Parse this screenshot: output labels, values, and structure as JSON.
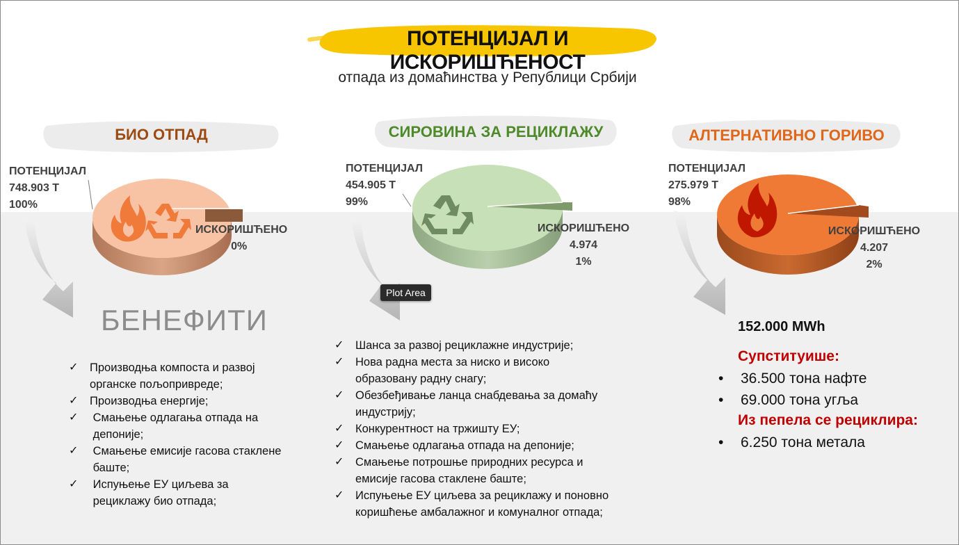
{
  "title": "ПОТЕНЦИЈАЛ И ИСКОРИШЋЕНОСТ",
  "subtitle": "отпада из домаћинства у Републици Србији",
  "colors": {
    "title_brush": "#f7c600",
    "bio_title": "#9c4a12",
    "recycle_title": "#4e8a2a",
    "fuel_title": "#e0661a",
    "red_heading": "#c00000"
  },
  "sections": {
    "bio": {
      "title": "БИО ОТПАД",
      "potential_label": "ПОТЕНЦИЈАЛ",
      "potential_value": "748.903 Т",
      "potential_pct": "100%",
      "used_label": "ИСКОРИШЋЕНО",
      "used_value": "",
      "used_pct": "0%",
      "pie_used_share": 0.005,
      "icons": [
        "flame-icon",
        "recycle-icon"
      ]
    },
    "recycle": {
      "title": "СИРОВИНА ЗА РЕЦИКЛАЖУ",
      "potential_label": "ПОТЕНЦИЈАЛ",
      "potential_value": "454.905 Т",
      "potential_pct": "99%",
      "used_label": "ИСКОРИШЋЕНО",
      "used_value": "4.974",
      "used_pct": "1%",
      "pie_used_share": 0.01,
      "icons": [
        "recycle-icon"
      ]
    },
    "fuel": {
      "title": "АЛТЕРНАТИВНО ГОРИВО",
      "potential_label": "ПОТЕНЦИЈАЛ",
      "potential_value": "275.979 Т",
      "potential_pct": "98%",
      "used_label": "ИСКОРИШЋЕНО",
      "used_value": "4.207",
      "used_pct": "2%",
      "pie_used_share": 0.02,
      "icons": [
        "flame-icon"
      ]
    }
  },
  "benefits": {
    "title": "БЕНЕФИТИ",
    "check_glyph": "✓",
    "bio_items": [
      [
        "Производња компоста и развој",
        "органске пољопривреде;"
      ],
      [
        "Производња енергије;"
      ],
      [
        " Смањење одлагања отпада на",
        " депоније;"
      ],
      [
        " Смањење емисије гасова стаклене",
        " баште;"
      ],
      [
        " Испуњење ЕУ циљева за",
        " рециклажу био отпада;"
      ]
    ],
    "recycle_items": [
      [
        "Шанса за развој рециклажне индустрије;"
      ],
      [
        "Нова радна места за ниско и високо",
        "образовану радну снагу;"
      ],
      [
        "Обезбеђивање ланца снабдевања за домаћу",
        "индустрију;"
      ],
      [
        "Конкурентност на тржишту ЕУ;"
      ],
      [
        "Смањење одлагања отпада на депоније;"
      ],
      [
        "Смањење потрошње природних ресурса и",
        "емисије гасова стаклене баште;"
      ],
      [
        "Испуњење ЕУ циљева за рециклажу и поновно",
        "коришћење амбалажног и комуналног отпада;"
      ]
    ]
  },
  "tooltip": "Plot Area",
  "fuel_benefits": {
    "energy": "152.000 MWh",
    "substitutes_heading": "Супституише:",
    "substitutes": [
      "36.500 тона нафте",
      "69.000 тона угља"
    ],
    "ash_heading": "Из пепела се рециклира:",
    "ash_items": [
      "6.250 тона метала"
    ]
  }
}
